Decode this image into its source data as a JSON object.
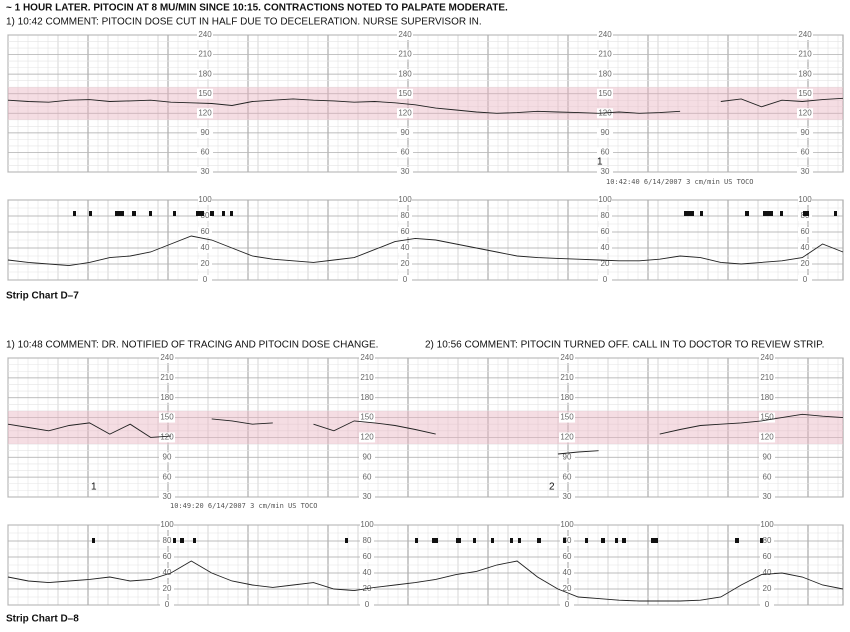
{
  "header": {
    "title": "~ 1 HOUR LATER. PITOCIN AT 8 MU/MIN SINCE 10:15. CONTRACTIONS NOTED TO PALPATE MODERATE."
  },
  "strips": [
    {
      "comments": [
        "1) 10:42 COMMENT: PITOCIN DOSE CUT IN HALF DUE TO DECELERATION. NURSE SUPERVISOR IN."
      ],
      "fhr_ticks": [
        240,
        210,
        180,
        150,
        120,
        90,
        60,
        30
      ],
      "fhr_lim": [
        30,
        240
      ],
      "toco_ticks": [
        100,
        80,
        60,
        40,
        20,
        0
      ],
      "toco_lim": [
        0,
        100
      ],
      "normal_band": [
        110,
        160
      ],
      "markers": [
        "1"
      ],
      "timestamp": "10:42:40 6/14/2007 3 cm/min US TOCO",
      "label": "Strip Chart D–7",
      "fhr_trace": [
        140,
        138,
        137,
        140,
        141,
        138,
        139,
        140,
        137,
        136,
        135,
        132,
        138,
        140,
        142,
        140,
        139,
        137,
        138,
        136,
        133,
        128,
        125,
        122,
        120,
        121,
        123,
        122,
        121,
        120,
        122,
        120,
        121,
        123,
        null,
        138,
        142,
        130,
        140,
        138,
        141,
        143
      ],
      "toco_trace": [
        25,
        22,
        20,
        18,
        22,
        28,
        30,
        35,
        45,
        55,
        50,
        40,
        30,
        26,
        24,
        22,
        25,
        28,
        38,
        48,
        52,
        50,
        45,
        40,
        35,
        30,
        28,
        27,
        26,
        25,
        24,
        24,
        26,
        30,
        28,
        22,
        20,
        22,
        24,
        28,
        45,
        35
      ]
    },
    {
      "comments": [
        "1) 10:48 COMMENT: DR. NOTIFIED OF TRACING AND PITOCIN DOSE CHANGE.",
        "2) 10:56 COMMENT: PITOCIN TURNED OFF. CALL IN TO DOCTOR TO REVIEW STRIP."
      ],
      "fhr_ticks": [
        240,
        210,
        180,
        150,
        120,
        90,
        60,
        30
      ],
      "fhr_lim": [
        30,
        240
      ],
      "toco_ticks": [
        100,
        80,
        60,
        40,
        20,
        0
      ],
      "toco_lim": [
        0,
        100
      ],
      "normal_band": [
        110,
        160
      ],
      "markers": [
        "1",
        "2"
      ],
      "timestamp": "10:49:20 6/14/2007 3 cm/min US TOCO",
      "label": "Strip Chart D–8",
      "fhr_trace": [
        140,
        135,
        130,
        138,
        142,
        125,
        140,
        120,
        122,
        null,
        148,
        145,
        140,
        142,
        null,
        140,
        130,
        145,
        142,
        138,
        132,
        125,
        null,
        null,
        null,
        null,
        null,
        95,
        98,
        100,
        null,
        null,
        125,
        132,
        138,
        140,
        142,
        145,
        150,
        155,
        152,
        150
      ],
      "toco_trace": [
        35,
        30,
        28,
        30,
        32,
        35,
        30,
        32,
        40,
        55,
        40,
        30,
        25,
        22,
        25,
        28,
        20,
        18,
        22,
        25,
        28,
        32,
        38,
        42,
        50,
        55,
        35,
        20,
        10,
        8,
        6,
        5,
        5,
        5,
        6,
        10,
        25,
        38,
        40,
        35,
        25,
        20
      ]
    }
  ]
}
